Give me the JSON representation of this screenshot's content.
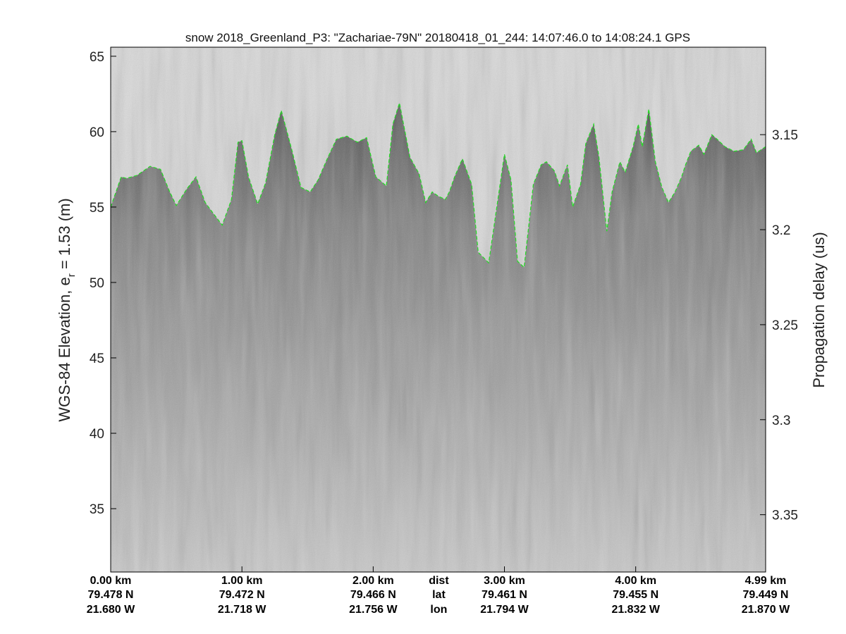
{
  "chart_data": {
    "type": "radar echogram",
    "title": "snow 2018_Greenland_P3: \"Zachariae-79N\"  20180418_01_244: 14:07:46.0 to 14:08:24.1 GPS",
    "ylabel": "WGS-84 Elevation, e_r = 1.53 (m)",
    "ylabel_prefix": "WGS-84 Elevation, e",
    "ylabel_sub": "r",
    "ylabel_suffix": " = 1.53 (m)",
    "y2label": "Propagation delay (us)",
    "ylim": [
      30.8,
      65.6
    ],
    "yticks": [
      35,
      40,
      45,
      50,
      55,
      60,
      65
    ],
    "y2ticks": [
      {
        "label": "3.15",
        "elev": 59.8
      },
      {
        "label": "3.2",
        "elev": 53.5
      },
      {
        "label": "3.25",
        "elev": 47.2
      },
      {
        "label": "3.3",
        "elev": 40.9
      },
      {
        "label": "3.35",
        "elev": 34.6
      }
    ],
    "xlim": [
      0,
      4.99
    ],
    "xticks": [
      {
        "dist": "0.00 km",
        "lat": "79.478 N",
        "lon": "21.680 W",
        "km": 0.0
      },
      {
        "dist": "1.00 km",
        "lat": "79.472 N",
        "lon": "21.718 W",
        "km": 1.0
      },
      {
        "dist": "2.00 km",
        "lat": "79.466 N",
        "lon": "21.756 W",
        "km": 2.0
      },
      {
        "dist": "3.00 km",
        "lat": "79.461 N",
        "lon": "21.794 W",
        "km": 3.0
      },
      {
        "dist": "4.00 km",
        "lat": "79.455 N",
        "lon": "21.832 W",
        "km": 4.0
      },
      {
        "dist": "4.99 km",
        "lat": "79.449 N",
        "lon": "21.870 W",
        "km": 4.99
      }
    ],
    "xtick_header": {
      "dist": "dist",
      "lat": "lat",
      "lon": "lon",
      "km": 2.5
    },
    "surface_color": "#22dd22",
    "surface": {
      "km": [
        0.0,
        0.08,
        0.12,
        0.2,
        0.3,
        0.38,
        0.45,
        0.5,
        0.58,
        0.65,
        0.72,
        0.78,
        0.85,
        0.92,
        0.97,
        1.0,
        1.05,
        1.12,
        1.18,
        1.25,
        1.3,
        1.38,
        1.45,
        1.52,
        1.58,
        1.65,
        1.72,
        1.8,
        1.88,
        1.95,
        2.02,
        2.1,
        2.15,
        2.2,
        2.28,
        2.35,
        2.4,
        2.45,
        2.5,
        2.55,
        2.58,
        2.62,
        2.68,
        2.75,
        2.8,
        2.88,
        2.95,
        3.0,
        3.05,
        3.1,
        3.15,
        3.22,
        3.28,
        3.32,
        3.38,
        3.42,
        3.48,
        3.52,
        3.58,
        3.62,
        3.68,
        3.72,
        3.78,
        3.82,
        3.88,
        3.92,
        3.98,
        4.02,
        4.05,
        4.1,
        4.15,
        4.2,
        4.25,
        4.3,
        4.35,
        4.38,
        4.42,
        4.48,
        4.52,
        4.58,
        4.62,
        4.68,
        4.75,
        4.82,
        4.88,
        4.92,
        4.99
      ],
      "elev": [
        55.0,
        57.0,
        56.9,
        57.1,
        57.7,
        57.5,
        56.0,
        55.1,
        56.2,
        57.0,
        55.3,
        54.6,
        53.8,
        55.5,
        59.3,
        59.4,
        57.0,
        55.2,
        56.6,
        59.8,
        61.4,
        58.8,
        56.3,
        56.0,
        56.8,
        58.2,
        59.5,
        59.7,
        59.3,
        59.6,
        57.0,
        56.4,
        60.5,
        61.9,
        58.3,
        57.2,
        55.3,
        56.0,
        55.7,
        55.5,
        56.0,
        57.0,
        58.2,
        56.5,
        52.0,
        51.3,
        55.5,
        58.5,
        56.8,
        51.4,
        51.0,
        56.5,
        57.8,
        58.0,
        57.4,
        56.4,
        57.8,
        55.0,
        56.5,
        59.2,
        60.5,
        58.3,
        53.4,
        56.0,
        58.0,
        57.3,
        59.0,
        60.5,
        59.0,
        61.5,
        58.0,
        56.3,
        55.3,
        56.0,
        57.0,
        57.8,
        58.7,
        59.1,
        58.5,
        59.8,
        59.5,
        59.0,
        58.7,
        58.8,
        59.5,
        58.6,
        59.0
      ]
    }
  }
}
